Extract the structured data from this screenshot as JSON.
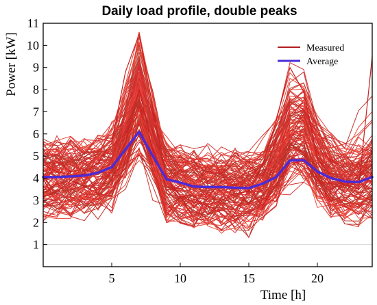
{
  "chart_data": {
    "type": "line",
    "title": "Daily load profile, double peaks",
    "xlabel": "Time [h]",
    "ylabel": "Power [kW]",
    "xlim": [
      0,
      24
    ],
    "ylim": [
      0,
      11
    ],
    "x_ticks": [
      5,
      10,
      15,
      20
    ],
    "y_ticks": [
      1,
      2,
      3,
      4,
      5,
      6,
      7,
      8,
      9,
      10,
      11
    ],
    "grid": false,
    "legend_position": "top-right",
    "x": [
      0,
      1,
      2,
      3,
      4,
      5,
      6,
      7,
      8,
      9,
      10,
      11,
      12,
      13,
      14,
      15,
      16,
      17,
      18,
      19,
      20,
      21,
      22,
      23,
      24
    ],
    "series": [
      {
        "name": "Average",
        "color": "#4b2bd6",
        "values": [
          4.05,
          4.05,
          4.08,
          4.12,
          4.25,
          4.5,
          5.3,
          6.1,
          5.0,
          3.95,
          3.8,
          3.62,
          3.6,
          3.6,
          3.57,
          3.55,
          3.75,
          4.05,
          4.8,
          4.82,
          4.3,
          4.0,
          3.85,
          3.82,
          4.05
        ]
      },
      {
        "name": "Measured",
        "color": "#d83a2e",
        "values": [
          4.6,
          4.3,
          4.1,
          4.2,
          4.7,
          5.6,
          8.8,
          10.5,
          7.2,
          4.0,
          3.2,
          2.9,
          2.8,
          3.0,
          3.3,
          3.4,
          4.6,
          6.6,
          9.0,
          7.9,
          4.9,
          4.1,
          3.7,
          3.5,
          9.5
        ]
      }
    ],
    "measured_line_count": 120
  }
}
